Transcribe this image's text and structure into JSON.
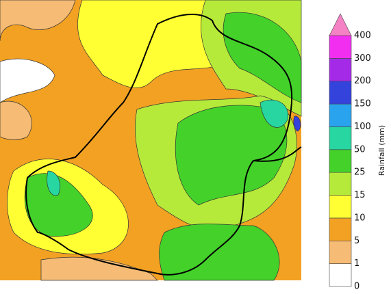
{
  "legend": {
    "title": "Rainfall (mm)",
    "levels": [
      0,
      1,
      5,
      10,
      15,
      25,
      50,
      100,
      150,
      200,
      300,
      400
    ],
    "colors": [
      "#ffffff",
      "#f6bb74",
      "#f2a123",
      "#ffff33",
      "#b6ea3a",
      "#43d12a",
      "#27d6a0",
      "#2aa3ee",
      "#3443dc",
      "#a52ae8",
      "#f22ef0"
    ],
    "extend_color": "#f482c4"
  }
}
